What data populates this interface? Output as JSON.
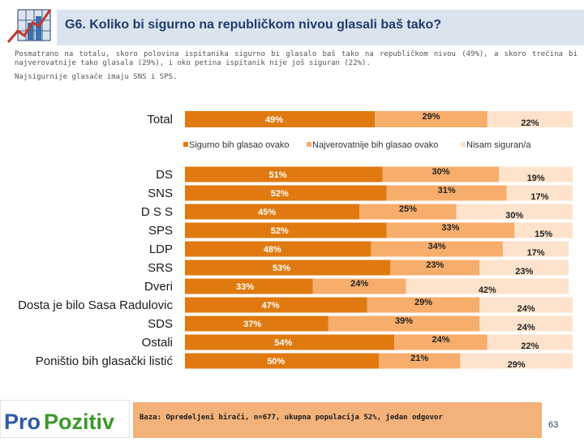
{
  "header": {
    "title": "G6. Koliko bi sigurno na republičkom nivou glasali baš tako?",
    "description": "Posmatrano na totalu, skoro polovina ispitanika sigurno bi glasalo baš tako na republičkom nivou (49%), a skoro trećina bi najverovatnije tako glasala (29%), i oko petina ispitanik nije još siguran (22%).",
    "description2": "Najsigurnije glasače imaju SNS i SPS."
  },
  "footer": {
    "logo_pro": "Pro",
    "logo_pozitiv": "Pozitiv",
    "note": "Baza: Opredeljeni birači, n=677, ukupna populacija 52%, jedan odgovor",
    "page": "63"
  },
  "colors": {
    "series1": "#e07a10",
    "series2": "#f7ad6b",
    "series3": "#fde3cc",
    "blue": "#1f3d6e"
  },
  "chart_data": {
    "type": "bar",
    "orientation": "horizontal",
    "stacked": true,
    "title": "G6. Koliko bi sigurno na republičkom nivou glasali baš tako?",
    "xlim": [
      0,
      100
    ],
    "unit": "%",
    "legend": [
      "Sigurno bih glasao ovako",
      "Najverovatnije bih glasao ovako",
      "Nisam siguran/a"
    ],
    "total": {
      "category": "Total",
      "values": [
        49,
        29,
        22
      ]
    },
    "categories": [
      "DS",
      "SNS",
      "D S S",
      "SPS",
      "LDP",
      "SRS",
      "Dveri",
      "Dosta je bilo Sasa Radulovic",
      "SDS",
      "Ostali",
      "Poništio bih glasački listić"
    ],
    "series": [
      {
        "name": "Sigurno bih glasao ovako",
        "values": [
          51,
          52,
          45,
          52,
          48,
          53,
          33,
          47,
          37,
          54,
          50
        ],
        "labels": [
          "51%",
          "52%",
          "45%",
          "52%",
          "48%",
          "53%",
          "33%",
          "47%",
          "37%",
          "54%",
          "50%"
        ]
      },
      {
        "name": "Najverovatnije bih glasao ovako",
        "values": [
          30,
          31,
          25,
          33,
          34,
          23,
          24,
          29,
          39,
          24,
          21
        ],
        "labels": [
          "30%",
          "31%",
          "25%",
          "33%",
          "34%",
          "23%",
          "24%",
          "29%",
          "39%",
          "24%",
          "21%"
        ]
      },
      {
        "name": "Nisam siguran/a",
        "values": [
          19,
          17,
          30,
          15,
          17,
          23,
          42,
          24,
          24,
          22,
          29
        ],
        "labels": [
          "19%",
          "17%",
          "30%",
          "15%",
          "17%",
          "23%",
          "42%",
          "24%",
          "24%",
          "22%",
          "29%"
        ]
      }
    ],
    "total_labels": [
      "49%",
      "29%",
      "22%"
    ]
  }
}
